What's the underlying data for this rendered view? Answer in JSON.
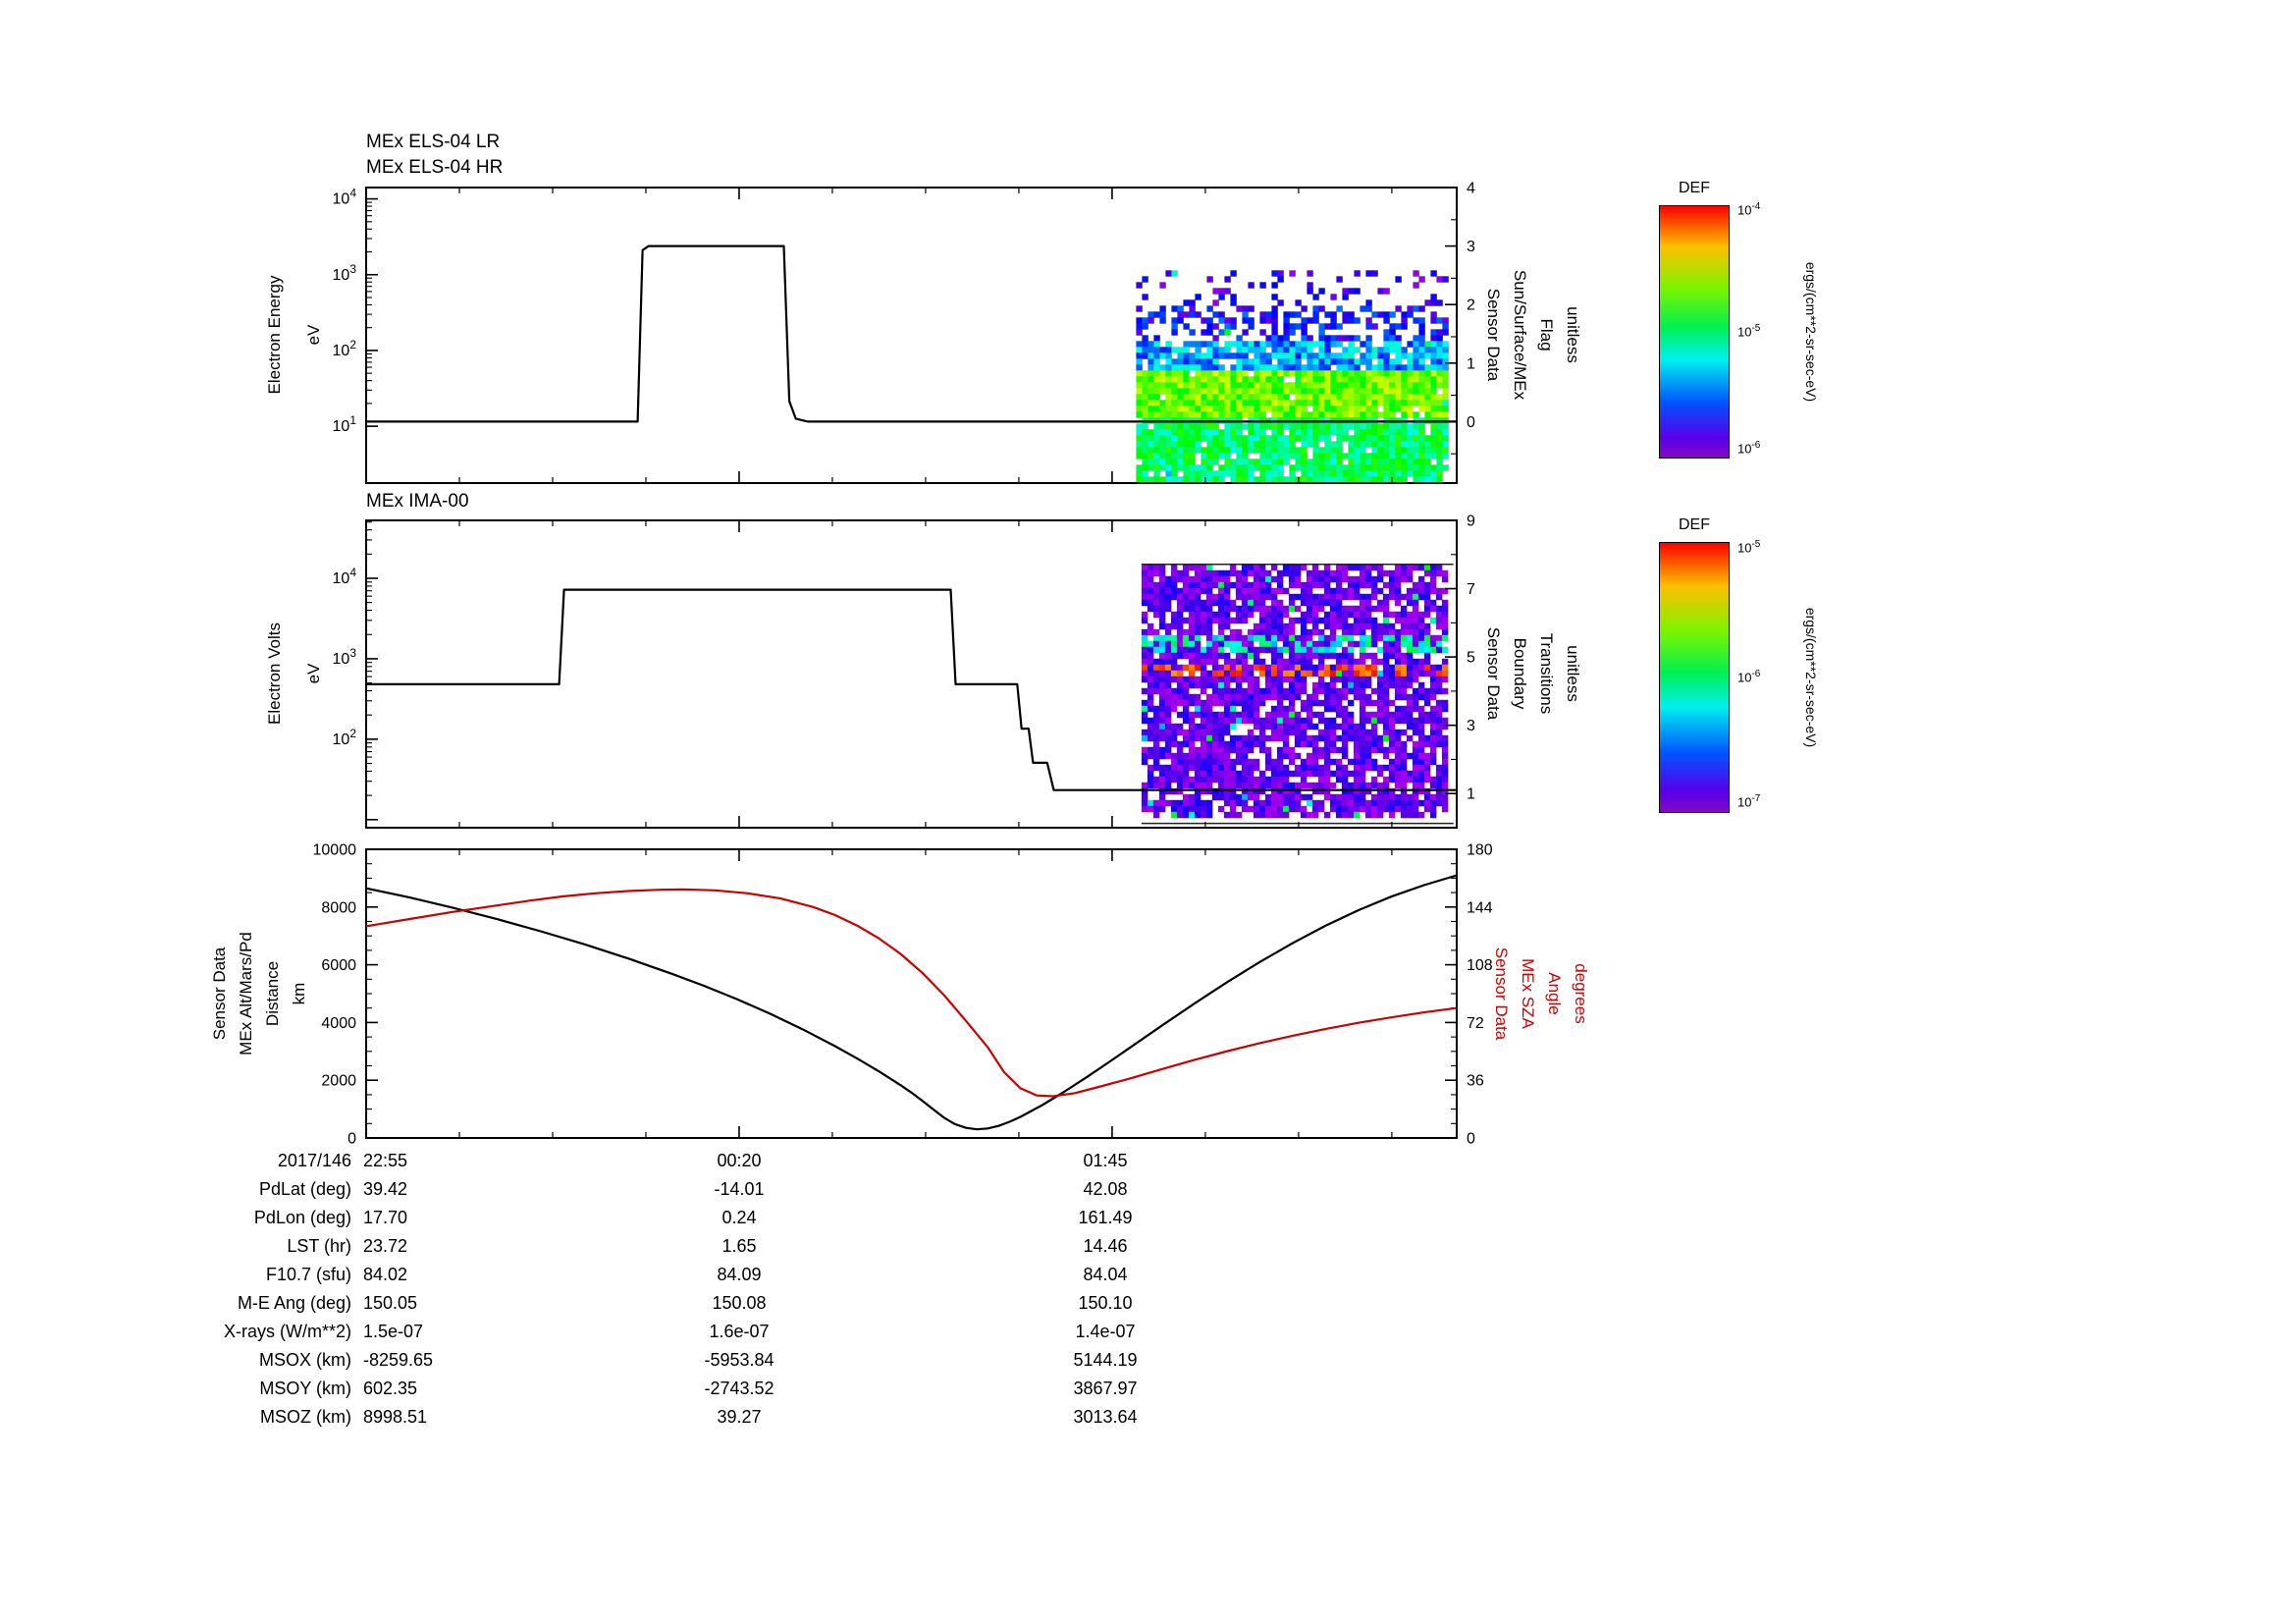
{
  "colors": {
    "sza_red": "#cc0000",
    "trace_black": "#000000",
    "background": "#ffffff"
  },
  "panel1": {
    "titles": [
      "MEx ELS-04 LR",
      "MEx ELS-04 HR"
    ]
  },
  "panel2": {
    "title": "MEx IMA-00"
  },
  "axis_labels": {
    "p1_left": {
      "lines": [
        "Electron Energy",
        "eV"
      ]
    },
    "p1_right": {
      "lines": [
        "Sensor Data",
        "Sun/Surface/MEx",
        "Flag",
        "unitless"
      ]
    },
    "p2_left": {
      "lines": [
        "Electron Volts",
        "eV"
      ]
    },
    "p2_right": {
      "lines": [
        "Sensor Data",
        "Boundary",
        "Transitions",
        "unitless"
      ]
    },
    "p3_left": {
      "lines": [
        "Sensor Data",
        "MEx Alt/Mars/Pd",
        "Distance",
        "km"
      ]
    },
    "p3_right": {
      "lines": [
        "Sensor Data",
        "MEx SZA",
        "Angle",
        "degrees"
      ],
      "color": "#cc0000"
    }
  },
  "colorbars": [
    {
      "title": "DEF",
      "exps": [
        -4,
        -5,
        -6
      ],
      "unit": "ergs/(cm**2-sr-sec-eV)"
    },
    {
      "title": "DEF",
      "exps": [
        -5,
        -6,
        -7
      ],
      "unit": "ergs/(cm**2-sr-sec-eV)"
    }
  ],
  "table": {
    "row_labels": [
      "2017/146",
      "PdLat (deg)",
      "PdLon (deg)",
      "LST (hr)",
      "F10.7 (sfu)",
      "M-E Ang (deg)",
      "X-rays (W/m**2)",
      "MSOX (km)",
      "MSOY (km)",
      "MSOZ (km)"
    ],
    "columns": [
      [
        "22:55",
        "39.42",
        "17.70",
        "23.72",
        "84.02",
        "150.05",
        "1.5e-07",
        "-8259.65",
        "602.35",
        "8998.51"
      ],
      [
        "00:20",
        "-14.01",
        "0.24",
        "1.65",
        "84.09",
        "150.08",
        "1.6e-07",
        "-5953.84",
        "-2743.52",
        "39.27"
      ],
      [
        "01:45",
        "42.08",
        "161.49",
        "14.46",
        "84.04",
        "150.10",
        "1.4e-07",
        "5144.19",
        "3867.97",
        "3013.64"
      ]
    ]
  },
  "chart_data": [
    {
      "type": "line+spectrogram",
      "title": "MEx ELS-04 LR / MEx ELS-04 HR",
      "x_ticks": {
        "labels": [
          "22:55",
          "00:20",
          "01:45"
        ],
        "fracs": [
          0,
          0.342,
          0.684
        ],
        "minor_step": 0.0855
      },
      "left_axis": {
        "scale": "log",
        "label": "Electron Energy (eV)",
        "min_exp": 0.25,
        "max_exp": 4.15,
        "tick_exps": [
          1,
          2,
          3,
          4
        ]
      },
      "right_axis": {
        "scale": "linear",
        "label": "Sun/Surface/MEx Flag (unitless)",
        "min": -1.05,
        "max": 4,
        "ticks": [
          0,
          1,
          2,
          3,
          4
        ],
        "minor_step": 0.5
      },
      "series": [
        {
          "name": "sun-surface-flag",
          "axis": "right",
          "color": "#000000",
          "points": [
            [
              0,
              0
            ],
            [
              0.249,
              0
            ],
            [
              0.2535,
              2.93
            ],
            [
              0.259,
              3
            ],
            [
              0.383,
              3
            ],
            [
              0.388,
              0.35
            ],
            [
              0.394,
              0.05
            ],
            [
              0.405,
              0
            ],
            [
              1,
              0
            ]
          ]
        }
      ],
      "spectrogram": {
        "x0": 0.706,
        "x1": 0.997,
        "y0": 0.28,
        "y1": 1.0,
        "cell": 6,
        "seed": 42,
        "sparkle": 0.004,
        "bands": [
          {
            "y0": 0.28,
            "y1": 0.4,
            "density": 0.18,
            "v": 0.1,
            "spread": 0.08
          },
          {
            "y0": 0.4,
            "y1": 0.52,
            "density": 0.45,
            "v": 0.16,
            "spread": 0.1
          },
          {
            "y0": 0.52,
            "y1": 0.62,
            "density": 0.85,
            "v": 0.3,
            "spread": 0.12
          },
          {
            "y0": 0.62,
            "y1": 0.79,
            "density": 0.97,
            "v": 0.66,
            "spread": 0.1
          },
          {
            "y0": 0.79,
            "y1": 1.0,
            "density": 0.92,
            "v": 0.5,
            "spread": 0.12
          }
        ]
      }
    },
    {
      "type": "line+spectrogram",
      "title": "MEx IMA-00",
      "x_ticks": {
        "labels": [
          "22:55",
          "00:20",
          "01:45"
        ],
        "fracs": [
          0,
          0.342,
          0.684
        ],
        "minor_step": 0.0855
      },
      "left_axis": {
        "scale": "log",
        "label": "Electron Volts (eV)",
        "min_exp": 0.9,
        "max_exp": 4.72,
        "tick_exps": [
          2,
          3,
          4
        ]
      },
      "right_axis": {
        "scale": "linear",
        "label": "Boundary Transitions (unitless)",
        "min": 0,
        "max": 9,
        "ticks": [
          1,
          3,
          5,
          7,
          9
        ],
        "minor_step": 1
      },
      "series": [
        {
          "name": "boundary-flag",
          "axis": "right",
          "color": "#000000",
          "points": [
            [
              0,
              4.2
            ],
            [
              0.177,
              4.2
            ],
            [
              0.1815,
              6.97
            ],
            [
              0.536,
              6.97
            ],
            [
              0.5405,
              4.2
            ],
            [
              0.597,
              4.2
            ],
            [
              0.601,
              2.9
            ],
            [
              0.6075,
              2.9
            ],
            [
              0.6115,
              1.9
            ],
            [
              0.6245,
              1.9
            ],
            [
              0.6305,
              1.1
            ],
            [
              1,
              1.1
            ]
          ]
        }
      ],
      "spectrogram": {
        "x0": 0.711,
        "x1": 0.997,
        "y0": 0.143,
        "y1": 0.986,
        "cell": 6,
        "seed": 7,
        "sparkle": 0.015,
        "bands": [
          {
            "y0": 0.143,
            "y1": 0.986,
            "density": 0.78,
            "v": 0.07,
            "spread": 0.07
          }
        ],
        "streaks": [
          {
            "y0": 0.37,
            "y1": 0.43,
            "density": 0.45,
            "v": 0.42,
            "spread": 0.12
          },
          {
            "y0": 0.475,
            "y1": 0.51,
            "density": 0.4,
            "v": 0.93,
            "spread": 0.06
          }
        ],
        "edge_lines": [
          0.143,
          0.986
        ]
      }
    },
    {
      "type": "line",
      "title": "MEx Altitude and Solar Zenith Angle",
      "x_ticks": {
        "labels": [
          "22:55",
          "00:20",
          "01:45"
        ],
        "fracs": [
          0,
          0.342,
          0.684
        ],
        "minor_step": 0.0855
      },
      "left_axis": {
        "scale": "linear",
        "label": "MEx Alt/Mars/Pd Distance (km)",
        "min": 0,
        "max": 10000,
        "ticks": [
          0,
          2000,
          4000,
          6000,
          8000,
          10000
        ],
        "minor_step": 500
      },
      "right_axis": {
        "scale": "linear",
        "label": "MEx SZA Angle (degrees)",
        "min": 0,
        "max": 180,
        "ticks": [
          0,
          36,
          72,
          108,
          144,
          180
        ],
        "minor_step": 9
      },
      "series": [
        {
          "name": "altitude-km",
          "axis": "left",
          "color": "#000000",
          "points": [
            [
              0,
              8650
            ],
            [
              0.04,
              8330
            ],
            [
              0.08,
              7970
            ],
            [
              0.12,
              7580
            ],
            [
              0.16,
              7160
            ],
            [
              0.2,
              6710
            ],
            [
              0.24,
              6220
            ],
            [
              0.28,
              5690
            ],
            [
              0.31,
              5270
            ],
            [
              0.34,
              4810
            ],
            [
              0.37,
              4310
            ],
            [
              0.4,
              3770
            ],
            [
              0.43,
              3180
            ],
            [
              0.45,
              2760
            ],
            [
              0.47,
              2310
            ],
            [
              0.49,
              1830
            ],
            [
              0.5,
              1570
            ],
            [
              0.51,
              1290
            ],
            [
              0.52,
              990
            ],
            [
              0.53,
              700
            ],
            [
              0.54,
              480
            ],
            [
              0.55,
              350
            ],
            [
              0.56,
              300
            ],
            [
              0.57,
              330
            ],
            [
              0.58,
              420
            ],
            [
              0.59,
              560
            ],
            [
              0.6,
              730
            ],
            [
              0.62,
              1140
            ],
            [
              0.64,
              1600
            ],
            [
              0.66,
              2090
            ],
            [
              0.68,
              2600
            ],
            [
              0.7,
              3120
            ],
            [
              0.73,
              3900
            ],
            [
              0.76,
              4670
            ],
            [
              0.79,
              5410
            ],
            [
              0.82,
              6110
            ],
            [
              0.85,
              6760
            ],
            [
              0.88,
              7360
            ],
            [
              0.91,
              7890
            ],
            [
              0.94,
              8360
            ],
            [
              0.97,
              8760
            ],
            [
              1.0,
              9100
            ]
          ]
        },
        {
          "name": "sza-deg",
          "axis": "right",
          "color": "#cc0000",
          "points": [
            [
              0,
              132
            ],
            [
              0.04,
              136.5
            ],
            [
              0.08,
              141
            ],
            [
              0.12,
              145
            ],
            [
              0.15,
              148
            ],
            [
              0.18,
              150.6
            ],
            [
              0.21,
              152.6
            ],
            [
              0.24,
              154
            ],
            [
              0.27,
              154.8
            ],
            [
              0.29,
              155
            ],
            [
              0.32,
              154.4
            ],
            [
              0.35,
              152.6
            ],
            [
              0.38,
              149.3
            ],
            [
              0.41,
              144
            ],
            [
              0.43,
              139
            ],
            [
              0.45,
              132.5
            ],
            [
              0.47,
              124.5
            ],
            [
              0.49,
              114.8
            ],
            [
              0.51,
              103
            ],
            [
              0.53,
              89
            ],
            [
              0.55,
              73
            ],
            [
              0.57,
              56.5
            ],
            [
              0.585,
              41
            ],
            [
              0.6,
              31
            ],
            [
              0.615,
              26.5
            ],
            [
              0.63,
              26
            ],
            [
              0.65,
              28
            ],
            [
              0.67,
              31.5
            ],
            [
              0.7,
              37
            ],
            [
              0.73,
              43
            ],
            [
              0.76,
              48.8
            ],
            [
              0.79,
              54.2
            ],
            [
              0.82,
              59.2
            ],
            [
              0.85,
              63.8
            ],
            [
              0.88,
              68
            ],
            [
              0.91,
              71.8
            ],
            [
              0.94,
              75.2
            ],
            [
              0.97,
              78.3
            ],
            [
              1.0,
              81
            ]
          ]
        }
      ]
    }
  ]
}
